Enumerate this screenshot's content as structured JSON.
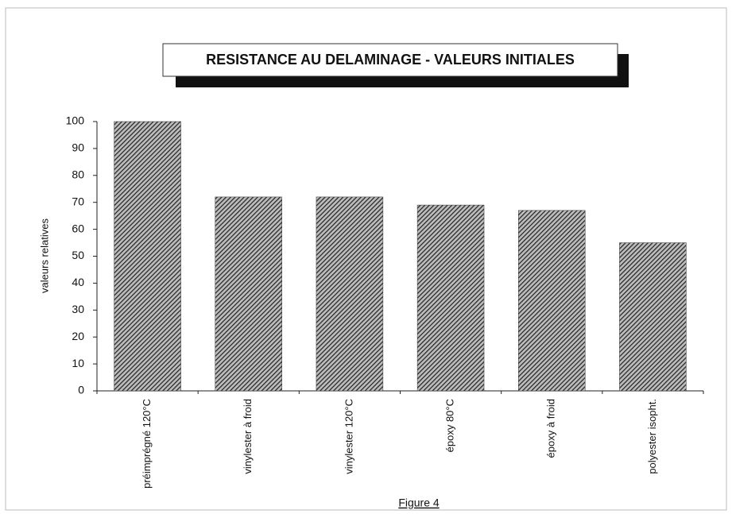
{
  "chart_data": {
    "type": "bar",
    "title": "RESISTANCE AU DELAMINAGE - VALEURS INITIALES",
    "y_label": "valeurs relatives",
    "caption": "Figure 4",
    "categories": [
      "préimprégné 120°C",
      "vinylester à froid",
      "vinylester 120°C",
      "époxy 80°C",
      "époxy à froid",
      "polyester isopht."
    ],
    "values": [
      100,
      72,
      72,
      69,
      67,
      55
    ],
    "color": "#2a2a2a",
    "ylim": [
      0,
      100
    ],
    "yticks": [
      0,
      10,
      20,
      30,
      40,
      50,
      60,
      70,
      80,
      90,
      100
    ],
    "grid": false
  }
}
